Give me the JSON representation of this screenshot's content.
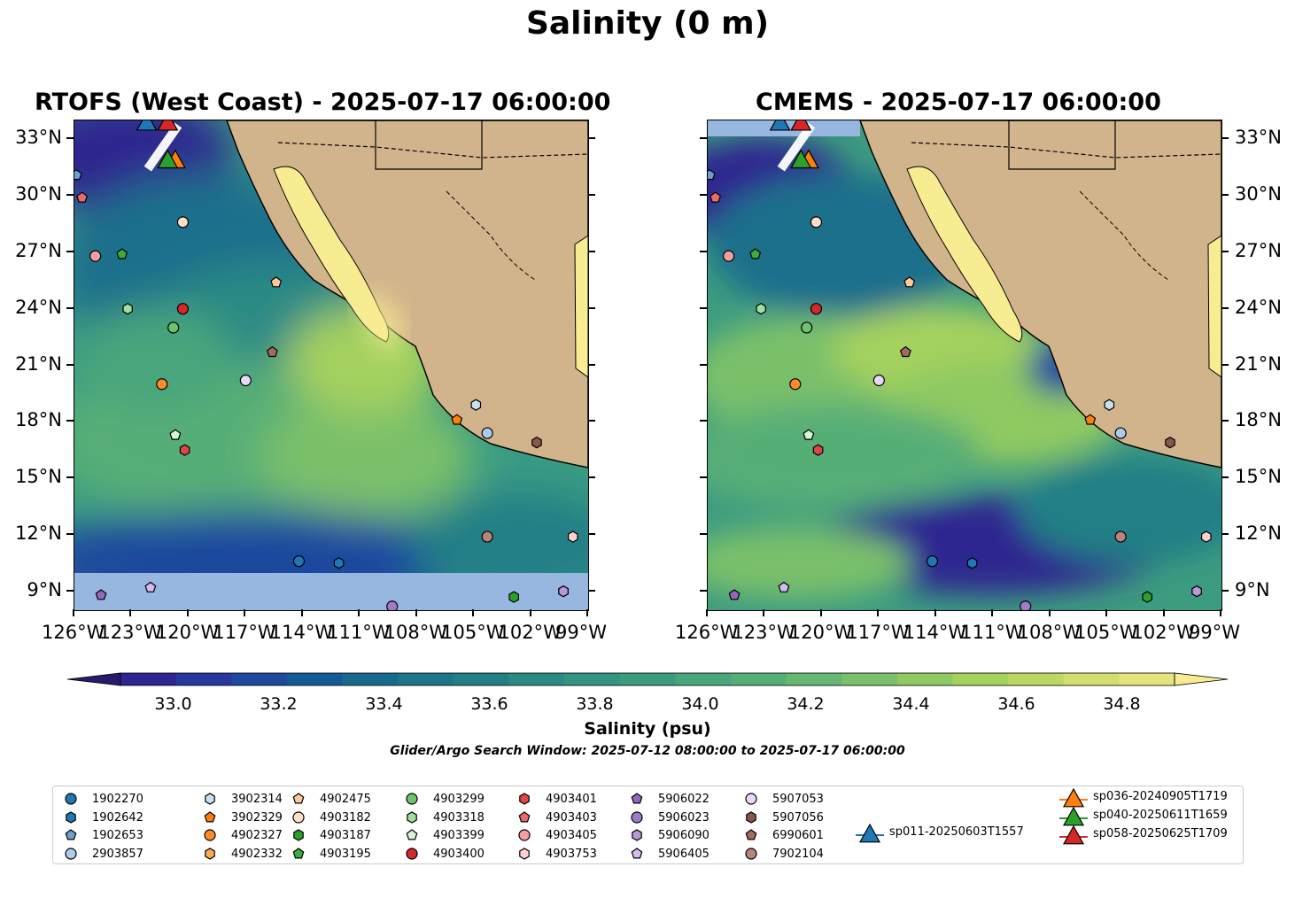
{
  "figure": {
    "title": "Salinity (0 m)",
    "window_text": "Glider/Argo Search Window: 2025-07-12 08:00:00 to 2025-07-17 06:00:00"
  },
  "panels": [
    {
      "title": "RTOFS (West Coast) - 2025-07-17 06:00:00"
    },
    {
      "title": "CMEMS - 2025-07-17 06:00:00"
    }
  ],
  "axes": {
    "lon_labels": [
      "126°W",
      "123°W",
      "120°W",
      "117°W",
      "114°W",
      "111°W",
      "108°W",
      "105°W",
      "102°W",
      "99°W"
    ],
    "lon_values": [
      -126,
      -123,
      -120,
      -117,
      -114,
      -111,
      -108,
      -105,
      -102,
      -99
    ],
    "lat_labels": [
      "9°N",
      "12°N",
      "15°N",
      "18°N",
      "21°N",
      "24°N",
      "27°N",
      "30°N",
      "33°N"
    ],
    "lat_values": [
      9,
      12,
      15,
      18,
      21,
      24,
      27,
      30,
      33
    ],
    "lon_range": [
      -126,
      -99
    ],
    "lat_range": [
      8,
      34
    ]
  },
  "colorbar": {
    "label": "Salinity (psu)",
    "tick_labels": [
      "33.0",
      "33.2",
      "33.4",
      "33.6",
      "33.8",
      "34.0",
      "34.2",
      "34.4",
      "34.6",
      "34.8"
    ],
    "tick_values": [
      33.0,
      33.2,
      33.4,
      33.6,
      33.8,
      34.0,
      34.2,
      34.4,
      34.6,
      34.8
    ],
    "range": [
      32.9,
      34.9
    ],
    "colors": [
      "#2a1a6b",
      "#2e2590",
      "#27379f",
      "#1f4a9e",
      "#155a95",
      "#176a8d",
      "#1c7588",
      "#237f86",
      "#2b8a85",
      "#339483",
      "#3d9c80",
      "#48a57c",
      "#56ae77",
      "#66b771",
      "#7ac06a",
      "#8fc962",
      "#a5d15e",
      "#bcd862",
      "#d3df6c",
      "#e5e47a",
      "#f7ec92"
    ]
  },
  "colors": {
    "land": "#d2b48c",
    "ocean_mask": "#97b6e0",
    "gulf": "#f7ec92"
  },
  "legend": {
    "floats": [
      {
        "id": "1902270",
        "shape": "circle",
        "color": "#1f77b4"
      },
      {
        "id": "1902642",
        "shape": "hexagon",
        "color": "#1f77b4"
      },
      {
        "id": "1902653",
        "shape": "pentagon",
        "color": "#6f9fcf"
      },
      {
        "id": "2903857",
        "shape": "circle",
        "color": "#a9cdeb"
      },
      {
        "id": "3902314",
        "shape": "hexagon",
        "color": "#c6e2f5"
      },
      {
        "id": "3902329",
        "shape": "pentagon",
        "color": "#ff7f0e"
      },
      {
        "id": "4902327",
        "shape": "circle",
        "color": "#ff8c2a"
      },
      {
        "id": "4902332",
        "shape": "hexagon",
        "color": "#ffa95a"
      },
      {
        "id": "4902475",
        "shape": "pentagon",
        "color": "#ffc99a"
      },
      {
        "id": "4903182",
        "shape": "circle",
        "color": "#ffe0c2"
      },
      {
        "id": "4903187",
        "shape": "hexagon",
        "color": "#2ca02c"
      },
      {
        "id": "4903195",
        "shape": "pentagon",
        "color": "#3dab3d"
      },
      {
        "id": "4903299",
        "shape": "circle",
        "color": "#6cc46c"
      },
      {
        "id": "4903318",
        "shape": "hexagon",
        "color": "#9ee09e"
      },
      {
        "id": "4903399",
        "shape": "pentagon",
        "color": "#d5f5d5"
      },
      {
        "id": "4903400",
        "shape": "circle",
        "color": "#d62728"
      },
      {
        "id": "4903401",
        "shape": "hexagon",
        "color": "#e04545"
      },
      {
        "id": "4903403",
        "shape": "pentagon",
        "color": "#eb6a6a"
      },
      {
        "id": "4903405",
        "shape": "circle",
        "color": "#f4a0a0"
      },
      {
        "id": "4903753",
        "shape": "hexagon",
        "color": "#ffd0d0"
      },
      {
        "id": "5906022",
        "shape": "pentagon",
        "color": "#9467bd"
      },
      {
        "id": "5906023",
        "shape": "circle",
        "color": "#a07cc8"
      },
      {
        "id": "5906090",
        "shape": "hexagon",
        "color": "#b898d9"
      },
      {
        "id": "5906405",
        "shape": "pentagon",
        "color": "#d4baf0"
      },
      {
        "id": "5907053",
        "shape": "circle",
        "color": "#ead8fb"
      },
      {
        "id": "5907056",
        "shape": "hexagon",
        "color": "#8c564b"
      },
      {
        "id": "6990601",
        "shape": "pentagon",
        "color": "#a46a5e"
      },
      {
        "id": "7902104",
        "shape": "circle",
        "color": "#b88378"
      }
    ],
    "gliders": [
      {
        "id": "sp011-20250603T1557",
        "color": "#1f77b4"
      },
      {
        "id": "sp036-20240905T1719",
        "color": "#ff7f0e"
      },
      {
        "id": "sp040-20250611T1659",
        "color": "#2ca02c"
      },
      {
        "id": "sp058-20250625T1709",
        "color": "#d62728"
      }
    ]
  },
  "markers": [
    {
      "id": "1902270",
      "lon": -114.2,
      "lat": 10.6
    },
    {
      "id": "1902642",
      "lon": -112.1,
      "lat": 10.5
    },
    {
      "id": "1902653",
      "lon": -125.9,
      "lat": 31.1
    },
    {
      "id": "2903857",
      "lon": -104.3,
      "lat": 17.4
    },
    {
      "id": "3902314",
      "lon": -104.9,
      "lat": 18.9
    },
    {
      "id": "3902329",
      "lon": -105.9,
      "lat": 18.1
    },
    {
      "id": "4902327",
      "lon": -121.4,
      "lat": 20.0
    },
    {
      "id": "4902332",
      "lon": -100.3,
      "lat": 9.0
    },
    {
      "id": "4902475",
      "lon": -115.4,
      "lat": 25.4
    },
    {
      "id": "4903182",
      "lon": -120.3,
      "lat": 28.6
    },
    {
      "id": "4903187",
      "lon": -102.9,
      "lat": 8.7
    },
    {
      "id": "4903195",
      "lon": -123.5,
      "lat": 26.9
    },
    {
      "id": "4903299",
      "lon": -120.8,
      "lat": 23.0
    },
    {
      "id": "4903318",
      "lon": -123.2,
      "lat": 24.0
    },
    {
      "id": "4903399",
      "lon": -120.7,
      "lat": 17.3
    },
    {
      "id": "4903400",
      "lon": -120.3,
      "lat": 24.0
    },
    {
      "id": "4903401",
      "lon": -120.2,
      "lat": 16.5
    },
    {
      "id": "4903403",
      "lon": -125.6,
      "lat": 29.9
    },
    {
      "id": "4903405",
      "lon": -124.9,
      "lat": 26.8
    },
    {
      "id": "4903753",
      "lon": -99.8,
      "lat": 11.9
    },
    {
      "id": "5906022",
      "lon": -124.6,
      "lat": 8.8
    },
    {
      "id": "5906023",
      "lon": -109.3,
      "lat": 8.2
    },
    {
      "id": "5906090",
      "lon": -100.3,
      "lat": 9.0
    },
    {
      "id": "5906405",
      "lon": -122.0,
      "lat": 9.2
    },
    {
      "id": "5907053",
      "lon": -117.0,
      "lat": 20.2
    },
    {
      "id": "5907056",
      "lon": -101.7,
      "lat": 16.9
    },
    {
      "id": "6990601",
      "lon": -115.6,
      "lat": 21.7
    },
    {
      "id": "7902104",
      "lon": -104.3,
      "lat": 11.9
    }
  ],
  "glider_markers": [
    {
      "id": "sp011-20250603T1557",
      "lon": -122.2,
      "lat": 33.9
    },
    {
      "id": "sp058-20250625T1709",
      "lon": -121.1,
      "lat": 33.9
    },
    {
      "id": "sp036-20240905T1719",
      "lon": -120.7,
      "lat": 31.9
    },
    {
      "id": "sp040-20250611T1659",
      "lon": -121.1,
      "lat": 31.9
    }
  ]
}
